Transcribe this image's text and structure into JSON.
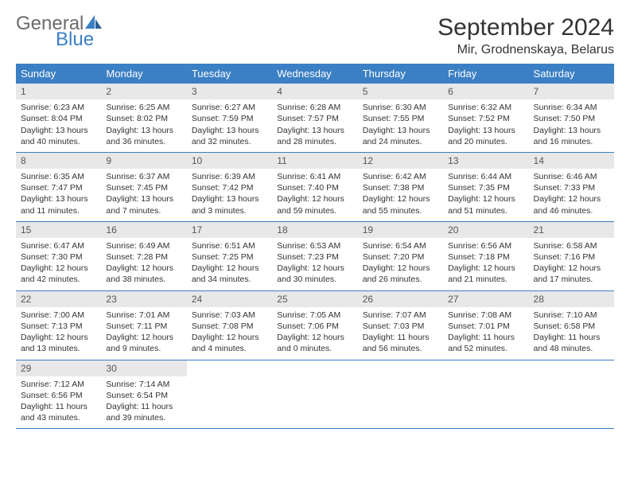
{
  "brand": {
    "word1": "General",
    "word2": "Blue",
    "icon_color": "#3b7fc4"
  },
  "header": {
    "title": "September 2024",
    "location": "Mir, Grodnenskaya, Belarus"
  },
  "colors": {
    "header_bg": "#3b7fc4",
    "daynum_bg": "#e8e8e8",
    "text": "#333333"
  },
  "day_names": [
    "Sunday",
    "Monday",
    "Tuesday",
    "Wednesday",
    "Thursday",
    "Friday",
    "Saturday"
  ],
  "weeks": [
    [
      {
        "n": "1",
        "sunrise": "Sunrise: 6:23 AM",
        "sunset": "Sunset: 8:04 PM",
        "daylight": "Daylight: 13 hours and 40 minutes."
      },
      {
        "n": "2",
        "sunrise": "Sunrise: 6:25 AM",
        "sunset": "Sunset: 8:02 PM",
        "daylight": "Daylight: 13 hours and 36 minutes."
      },
      {
        "n": "3",
        "sunrise": "Sunrise: 6:27 AM",
        "sunset": "Sunset: 7:59 PM",
        "daylight": "Daylight: 13 hours and 32 minutes."
      },
      {
        "n": "4",
        "sunrise": "Sunrise: 6:28 AM",
        "sunset": "Sunset: 7:57 PM",
        "daylight": "Daylight: 13 hours and 28 minutes."
      },
      {
        "n": "5",
        "sunrise": "Sunrise: 6:30 AM",
        "sunset": "Sunset: 7:55 PM",
        "daylight": "Daylight: 13 hours and 24 minutes."
      },
      {
        "n": "6",
        "sunrise": "Sunrise: 6:32 AM",
        "sunset": "Sunset: 7:52 PM",
        "daylight": "Daylight: 13 hours and 20 minutes."
      },
      {
        "n": "7",
        "sunrise": "Sunrise: 6:34 AM",
        "sunset": "Sunset: 7:50 PM",
        "daylight": "Daylight: 13 hours and 16 minutes."
      }
    ],
    [
      {
        "n": "8",
        "sunrise": "Sunrise: 6:35 AM",
        "sunset": "Sunset: 7:47 PM",
        "daylight": "Daylight: 13 hours and 11 minutes."
      },
      {
        "n": "9",
        "sunrise": "Sunrise: 6:37 AM",
        "sunset": "Sunset: 7:45 PM",
        "daylight": "Daylight: 13 hours and 7 minutes."
      },
      {
        "n": "10",
        "sunrise": "Sunrise: 6:39 AM",
        "sunset": "Sunset: 7:42 PM",
        "daylight": "Daylight: 13 hours and 3 minutes."
      },
      {
        "n": "11",
        "sunrise": "Sunrise: 6:41 AM",
        "sunset": "Sunset: 7:40 PM",
        "daylight": "Daylight: 12 hours and 59 minutes."
      },
      {
        "n": "12",
        "sunrise": "Sunrise: 6:42 AM",
        "sunset": "Sunset: 7:38 PM",
        "daylight": "Daylight: 12 hours and 55 minutes."
      },
      {
        "n": "13",
        "sunrise": "Sunrise: 6:44 AM",
        "sunset": "Sunset: 7:35 PM",
        "daylight": "Daylight: 12 hours and 51 minutes."
      },
      {
        "n": "14",
        "sunrise": "Sunrise: 6:46 AM",
        "sunset": "Sunset: 7:33 PM",
        "daylight": "Daylight: 12 hours and 46 minutes."
      }
    ],
    [
      {
        "n": "15",
        "sunrise": "Sunrise: 6:47 AM",
        "sunset": "Sunset: 7:30 PM",
        "daylight": "Daylight: 12 hours and 42 minutes."
      },
      {
        "n": "16",
        "sunrise": "Sunrise: 6:49 AM",
        "sunset": "Sunset: 7:28 PM",
        "daylight": "Daylight: 12 hours and 38 minutes."
      },
      {
        "n": "17",
        "sunrise": "Sunrise: 6:51 AM",
        "sunset": "Sunset: 7:25 PM",
        "daylight": "Daylight: 12 hours and 34 minutes."
      },
      {
        "n": "18",
        "sunrise": "Sunrise: 6:53 AM",
        "sunset": "Sunset: 7:23 PM",
        "daylight": "Daylight: 12 hours and 30 minutes."
      },
      {
        "n": "19",
        "sunrise": "Sunrise: 6:54 AM",
        "sunset": "Sunset: 7:20 PM",
        "daylight": "Daylight: 12 hours and 26 minutes."
      },
      {
        "n": "20",
        "sunrise": "Sunrise: 6:56 AM",
        "sunset": "Sunset: 7:18 PM",
        "daylight": "Daylight: 12 hours and 21 minutes."
      },
      {
        "n": "21",
        "sunrise": "Sunrise: 6:58 AM",
        "sunset": "Sunset: 7:16 PM",
        "daylight": "Daylight: 12 hours and 17 minutes."
      }
    ],
    [
      {
        "n": "22",
        "sunrise": "Sunrise: 7:00 AM",
        "sunset": "Sunset: 7:13 PM",
        "daylight": "Daylight: 12 hours and 13 minutes."
      },
      {
        "n": "23",
        "sunrise": "Sunrise: 7:01 AM",
        "sunset": "Sunset: 7:11 PM",
        "daylight": "Daylight: 12 hours and 9 minutes."
      },
      {
        "n": "24",
        "sunrise": "Sunrise: 7:03 AM",
        "sunset": "Sunset: 7:08 PM",
        "daylight": "Daylight: 12 hours and 4 minutes."
      },
      {
        "n": "25",
        "sunrise": "Sunrise: 7:05 AM",
        "sunset": "Sunset: 7:06 PM",
        "daylight": "Daylight: 12 hours and 0 minutes."
      },
      {
        "n": "26",
        "sunrise": "Sunrise: 7:07 AM",
        "sunset": "Sunset: 7:03 PM",
        "daylight": "Daylight: 11 hours and 56 minutes."
      },
      {
        "n": "27",
        "sunrise": "Sunrise: 7:08 AM",
        "sunset": "Sunset: 7:01 PM",
        "daylight": "Daylight: 11 hours and 52 minutes."
      },
      {
        "n": "28",
        "sunrise": "Sunrise: 7:10 AM",
        "sunset": "Sunset: 6:58 PM",
        "daylight": "Daylight: 11 hours and 48 minutes."
      }
    ],
    [
      {
        "n": "29",
        "sunrise": "Sunrise: 7:12 AM",
        "sunset": "Sunset: 6:56 PM",
        "daylight": "Daylight: 11 hours and 43 minutes."
      },
      {
        "n": "30",
        "sunrise": "Sunrise: 7:14 AM",
        "sunset": "Sunset: 6:54 PM",
        "daylight": "Daylight: 11 hours and 39 minutes."
      },
      {
        "empty": true
      },
      {
        "empty": true
      },
      {
        "empty": true
      },
      {
        "empty": true
      },
      {
        "empty": true
      }
    ]
  ]
}
